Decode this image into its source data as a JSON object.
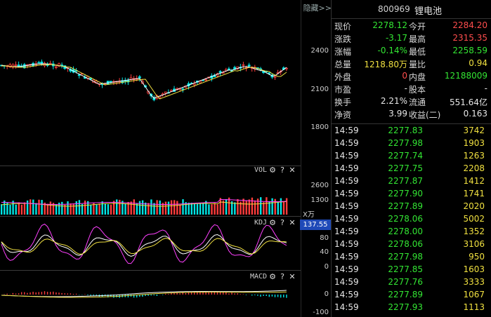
{
  "chart": {
    "hide_label": "隐藏>>",
    "price_axis": [
      "2400",
      "2100",
      "1800"
    ],
    "vol": {
      "title": "VOL",
      "axis": [
        "2600",
        "1300"
      ],
      "unit": "X万"
    },
    "kdj": {
      "title": "KDJ",
      "axis": [
        "80",
        "40",
        "0"
      ],
      "badge": "137.55"
    },
    "macd": {
      "title": "MACD",
      "axis": [
        "0",
        "-100"
      ]
    },
    "icons": {
      "settings": "⚙",
      "help": "?",
      "close": "✕"
    },
    "colors": {
      "up": "#ff3c3c",
      "down": "#00e5e5",
      "ma5": "#ffffff",
      "ma10": "#f0e040",
      "ma20": "#ff40ff"
    }
  },
  "quote": {
    "code": "800969",
    "name": "锂电池",
    "rows": [
      {
        "l1": "现价",
        "v1": "2278.12",
        "c1": "green",
        "l2": "今开",
        "v2": "2284.20",
        "c2": "red"
      },
      {
        "l1": "涨跌",
        "v1": "-3.17",
        "c1": "green",
        "l2": "最高",
        "v2": "2315.35",
        "c2": "red"
      },
      {
        "l1": "涨幅",
        "v1": "-0.14%",
        "c1": "green",
        "l2": "最低",
        "v2": "2258.59",
        "c2": "green"
      },
      {
        "l1": "总量",
        "v1": "1218.80万",
        "c1": "yellow",
        "l2": "量比",
        "v2": "0.94",
        "c2": "yellow"
      },
      {
        "l1": "外盘",
        "v1": "0",
        "c1": "red",
        "l2": "内盘",
        "v2": "12188009",
        "c2": "green"
      },
      {
        "l1": "市盈",
        "v1": "-",
        "c1": "white",
        "l2": "股本",
        "v2": "-",
        "c2": "white"
      },
      {
        "l1": "换手",
        "v1": "2.21%",
        "c1": "white",
        "l2": "流通",
        "v2": "551.64亿",
        "c2": "white"
      },
      {
        "l1": "净资",
        "v1": "3.99",
        "c1": "white",
        "l2": "收益(二)",
        "v2": "0.163",
        "c2": "white"
      }
    ]
  },
  "ticks": [
    {
      "time": "14:59",
      "price": "2277.83",
      "vol": "3742"
    },
    {
      "time": "14:59",
      "price": "2277.98",
      "vol": "1903"
    },
    {
      "time": "14:59",
      "price": "2277.74",
      "vol": "1263"
    },
    {
      "time": "14:59",
      "price": "2277.75",
      "vol": "2208"
    },
    {
      "time": "14:59",
      "price": "2277.87",
      "vol": "1412"
    },
    {
      "time": "14:59",
      "price": "2277.90",
      "vol": "1741"
    },
    {
      "time": "14:59",
      "price": "2277.89",
      "vol": "2020"
    },
    {
      "time": "14:59",
      "price": "2278.06",
      "vol": "5002"
    },
    {
      "time": "14:59",
      "price": "2278.00",
      "vol": "1352"
    },
    {
      "time": "14:59",
      "price": "2278.06",
      "vol": "3106"
    },
    {
      "time": "14:59",
      "price": "2277.98",
      "vol": "950"
    },
    {
      "time": "14:59",
      "price": "2277.85",
      "vol": "1603"
    },
    {
      "time": "14:59",
      "price": "2277.76",
      "vol": "3333"
    },
    {
      "time": "14:59",
      "price": "2277.89",
      "vol": "1067"
    },
    {
      "time": "14:59",
      "price": "2277.93",
      "vol": "1113"
    }
  ]
}
